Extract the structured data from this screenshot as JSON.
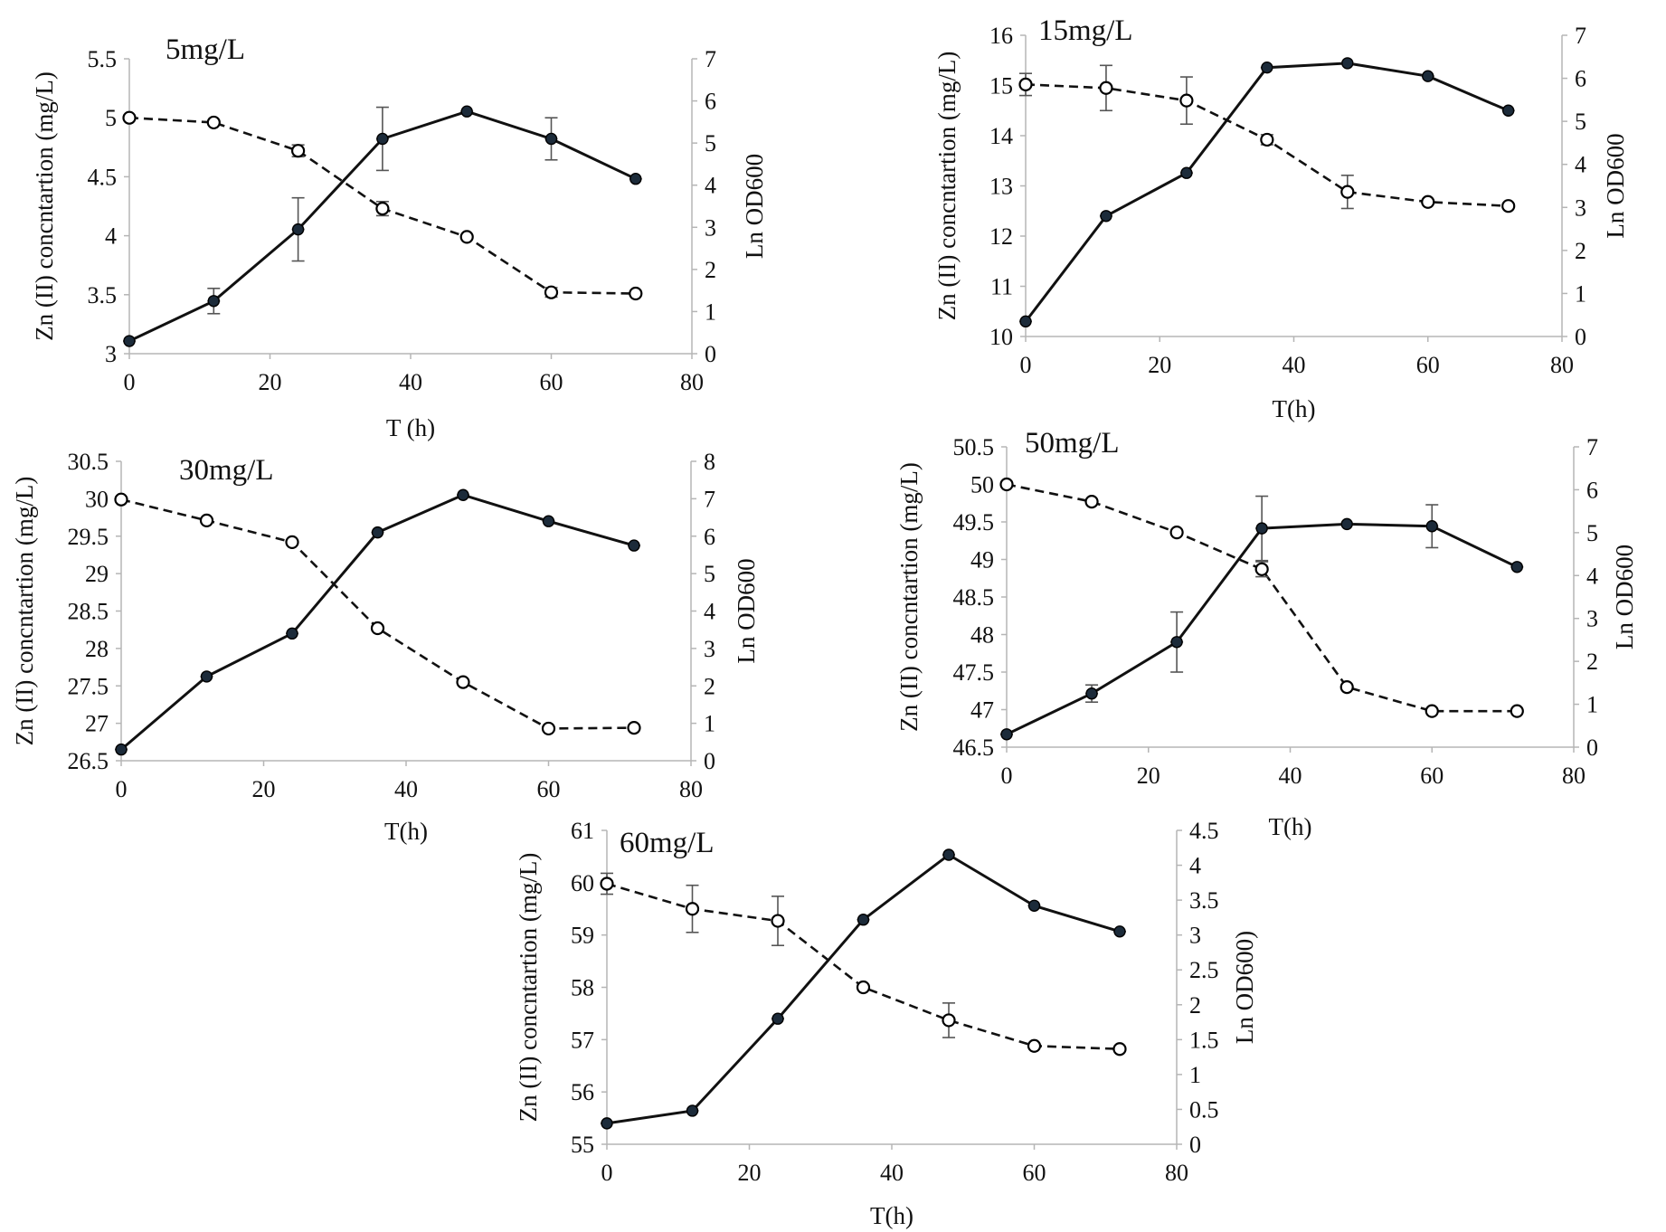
{
  "chart_data": [
    {
      "type": "line",
      "title": "5mg/L",
      "xlabel": "T (h)",
      "ylabel": "Zn (II) concntartion (mg/L)",
      "y2label": "Ln OD600",
      "xlim": [
        0,
        80
      ],
      "xticks": [
        0,
        20,
        40,
        60,
        80
      ],
      "ylim": [
        3,
        5.5
      ],
      "yticks": [
        "3",
        "3.5",
        "4",
        "4.5",
        "5",
        "5.5"
      ],
      "y2lim": [
        0,
        7
      ],
      "y2ticks": [
        "0",
        "1",
        "2",
        "3",
        "4",
        "5",
        "6",
        "7"
      ],
      "x": [
        0,
        12,
        24,
        36,
        48,
        60,
        72
      ],
      "series": [
        {
          "axis": "y2",
          "values": [
            0.3,
            1.25,
            2.95,
            5.1,
            5.75,
            5.1,
            4.15
          ],
          "errors": [
            0,
            0.3,
            0.75,
            0.75,
            0,
            0.5,
            0
          ]
        },
        {
          "axis": "y",
          "values": [
            5.0,
            4.96,
            4.72,
            4.23,
            3.99,
            3.52,
            3.51
          ],
          "errors": [
            0,
            0,
            0.05,
            0.06,
            0,
            0.04,
            0
          ]
        }
      ]
    },
    {
      "type": "line",
      "title": "15mg/L",
      "xlabel": "T(h)",
      "ylabel": "Zn (II) concntartion (mg/L)",
      "y2label": "Ln OD600",
      "xlim": [
        0,
        80
      ],
      "xticks": [
        0,
        20,
        40,
        60,
        80
      ],
      "ylim": [
        10,
        16
      ],
      "yticks": [
        "10",
        "11",
        "12",
        "13",
        "14",
        "15",
        "16"
      ],
      "y2lim": [
        0,
        7
      ],
      "y2ticks": [
        "0",
        "1",
        "2",
        "3",
        "4",
        "5",
        "6",
        "7"
      ],
      "x": [
        0,
        12,
        24,
        36,
        48,
        60,
        72
      ],
      "series": [
        {
          "axis": "y2",
          "values": [
            0.35,
            2.8,
            3.8,
            6.25,
            6.35,
            6.05,
            5.25
          ],
          "errors": [
            0,
            0,
            0,
            0,
            0,
            0,
            0
          ]
        },
        {
          "axis": "y",
          "values": [
            15.02,
            14.95,
            14.7,
            13.92,
            12.88,
            12.68,
            12.6
          ],
          "errors": [
            0.22,
            0.45,
            0.47,
            0.1,
            0.33,
            0,
            0
          ]
        }
      ]
    },
    {
      "type": "line",
      "title": "30mg/L",
      "xlabel": "T(h)",
      "ylabel": "Zn (II) concntartion (mg/L)",
      "y2label": "Ln OD600",
      "xlim": [
        0,
        80
      ],
      "xticks": [
        0,
        20,
        40,
        60,
        80
      ],
      "ylim": [
        26.5,
        30.5
      ],
      "yticks": [
        "26.5",
        "27",
        "27.5",
        "28",
        "28.5",
        "29",
        "29.5",
        "30",
        "30.5"
      ],
      "y2lim": [
        0,
        8
      ],
      "y2ticks": [
        "0",
        "1",
        "2",
        "3",
        "4",
        "5",
        "6",
        "7",
        "8"
      ],
      "x": [
        0,
        12,
        24,
        36,
        48,
        60,
        72
      ],
      "series": [
        {
          "axis": "y2",
          "values": [
            0.3,
            2.25,
            3.4,
            6.1,
            7.1,
            6.4,
            5.75
          ],
          "errors": [
            0,
            0,
            0,
            0,
            0,
            0,
            0
          ]
        },
        {
          "axis": "y",
          "values": [
            29.99,
            29.71,
            29.42,
            28.27,
            27.55,
            26.93,
            26.94
          ],
          "errors": [
            0,
            0,
            0,
            0,
            0,
            0,
            0
          ]
        }
      ]
    },
    {
      "type": "line",
      "title": "50mg/L",
      "xlabel": "T(h)",
      "ylabel": "Zn (II) concntartion (mg/L)",
      "y2label": "Ln OD600",
      "xlim": [
        0,
        80
      ],
      "xticks": [
        0,
        20,
        40,
        60,
        80
      ],
      "ylim": [
        46.5,
        50.5
      ],
      "yticks": [
        "46.5",
        "47",
        "47.5",
        "48",
        "48.5",
        "49",
        "49.5",
        "50",
        "50.5"
      ],
      "y2lim": [
        0,
        7
      ],
      "y2ticks": [
        "0",
        "1",
        "2",
        "3",
        "4",
        "5",
        "6",
        "7"
      ],
      "x": [
        0,
        12,
        24,
        36,
        48,
        60,
        72
      ],
      "series": [
        {
          "axis": "y2",
          "values": [
            0.3,
            1.25,
            2.45,
            5.1,
            5.2,
            5.15,
            4.2
          ],
          "errors": [
            0,
            0.2,
            0.7,
            0.75,
            0,
            0.5,
            0
          ]
        },
        {
          "axis": "y",
          "values": [
            50.0,
            49.77,
            49.36,
            48.87,
            47.3,
            46.98,
            46.98
          ],
          "errors": [
            0,
            0,
            0,
            0.1,
            0,
            0,
            0
          ]
        }
      ]
    },
    {
      "type": "line",
      "title": "60mg/L",
      "xlabel": "T(h)",
      "ylabel": "Zn (II) concntartion (mg/L)",
      "y2label": "Ln OD600)",
      "xlim": [
        0,
        80
      ],
      "xticks": [
        0,
        20,
        40,
        60,
        80
      ],
      "ylim": [
        55,
        61
      ],
      "yticks": [
        "55",
        "56",
        "57",
        "58",
        "59",
        "60",
        "61"
      ],
      "y2lim": [
        0,
        4.5
      ],
      "y2ticks": [
        "0",
        "0.5",
        "1",
        "1.5",
        "2",
        "2.5",
        "3",
        "3.5",
        "4",
        "4.5"
      ],
      "x": [
        0,
        12,
        24,
        36,
        48,
        60,
        72
      ],
      "series": [
        {
          "axis": "y2",
          "values": [
            0.3,
            0.48,
            1.8,
            3.22,
            4.15,
            3.42,
            3.05
          ],
          "errors": [
            0,
            0,
            0,
            0,
            0,
            0,
            0
          ]
        },
        {
          "axis": "y",
          "values": [
            59.98,
            59.5,
            59.27,
            58.0,
            57.37,
            56.88,
            56.82
          ],
          "errors": [
            0.2,
            0.45,
            0.47,
            0,
            0.33,
            0,
            0
          ]
        }
      ]
    }
  ]
}
